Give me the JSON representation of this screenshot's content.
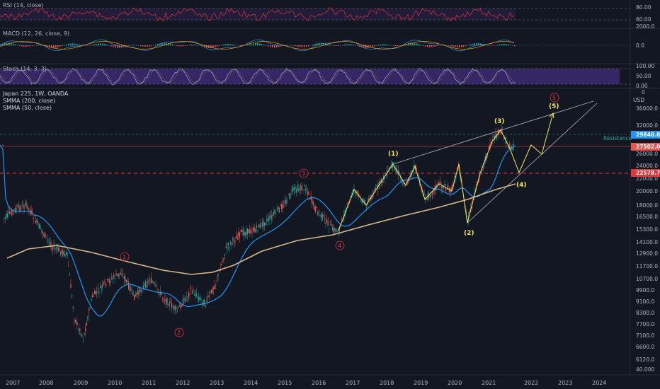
{
  "panes": {
    "rsi": {
      "label": "RSI (14, close)",
      "ticks": [
        "80.00",
        "60.00"
      ]
    },
    "macd": {
      "label": "MACD (12, 26, close, 9)",
      "ticks": [
        "2000.0",
        "0.0"
      ]
    },
    "stoch": {
      "label": "Stoch (14, 3, 3)",
      "ticks": [
        "100.00",
        "50.00",
        "0.00"
      ]
    }
  },
  "main": {
    "symbol": "Japan 225, 1W, OANDA",
    "ma200_label": "SMMA (200, close)",
    "ma50_label": "SMMA (50, close)",
    "currency": "USD",
    "price_ticks": [
      "36000.0",
      "32000.0",
      "28000.0",
      "26000.0",
      "24000.0",
      "22000.0",
      "20000.0",
      "18000.0",
      "16500.0",
      "15300.0",
      "14100.0",
      "12900.0",
      "11700.0",
      "10700.0",
      "9900.0",
      "9100.0",
      "8300.0",
      "7700.0",
      "7100.0",
      "6600.0",
      "6120.0",
      "40.000"
    ],
    "current_price_tag": "29848.8",
    "price_tag_2": "27502.0",
    "resistance_price_tag": "22578.7",
    "resistance_label": "Resistance"
  },
  "time_axis": [
    "2007",
    "2008",
    "2009",
    "2010",
    "2011",
    "2012",
    "2013",
    "2014",
    "2015",
    "2016",
    "2017",
    "2018",
    "2019",
    "2020",
    "2021",
    "2022",
    "2023",
    "2024"
  ],
  "wave_labels": {
    "yellow": [
      "(1)",
      "(2)",
      "(3)",
      "(4)",
      "(5)"
    ],
    "red": [
      "1",
      "2",
      "3",
      "4",
      "5"
    ]
  },
  "colors": {
    "background": "#131722",
    "ma50": "#2196f3",
    "ma200": "#d9b88a",
    "wave": "#f5e663",
    "red": "#e5343a",
    "up": "#26a69a",
    "down": "#ef5350",
    "stoch_band": "#4a2a8a"
  }
}
